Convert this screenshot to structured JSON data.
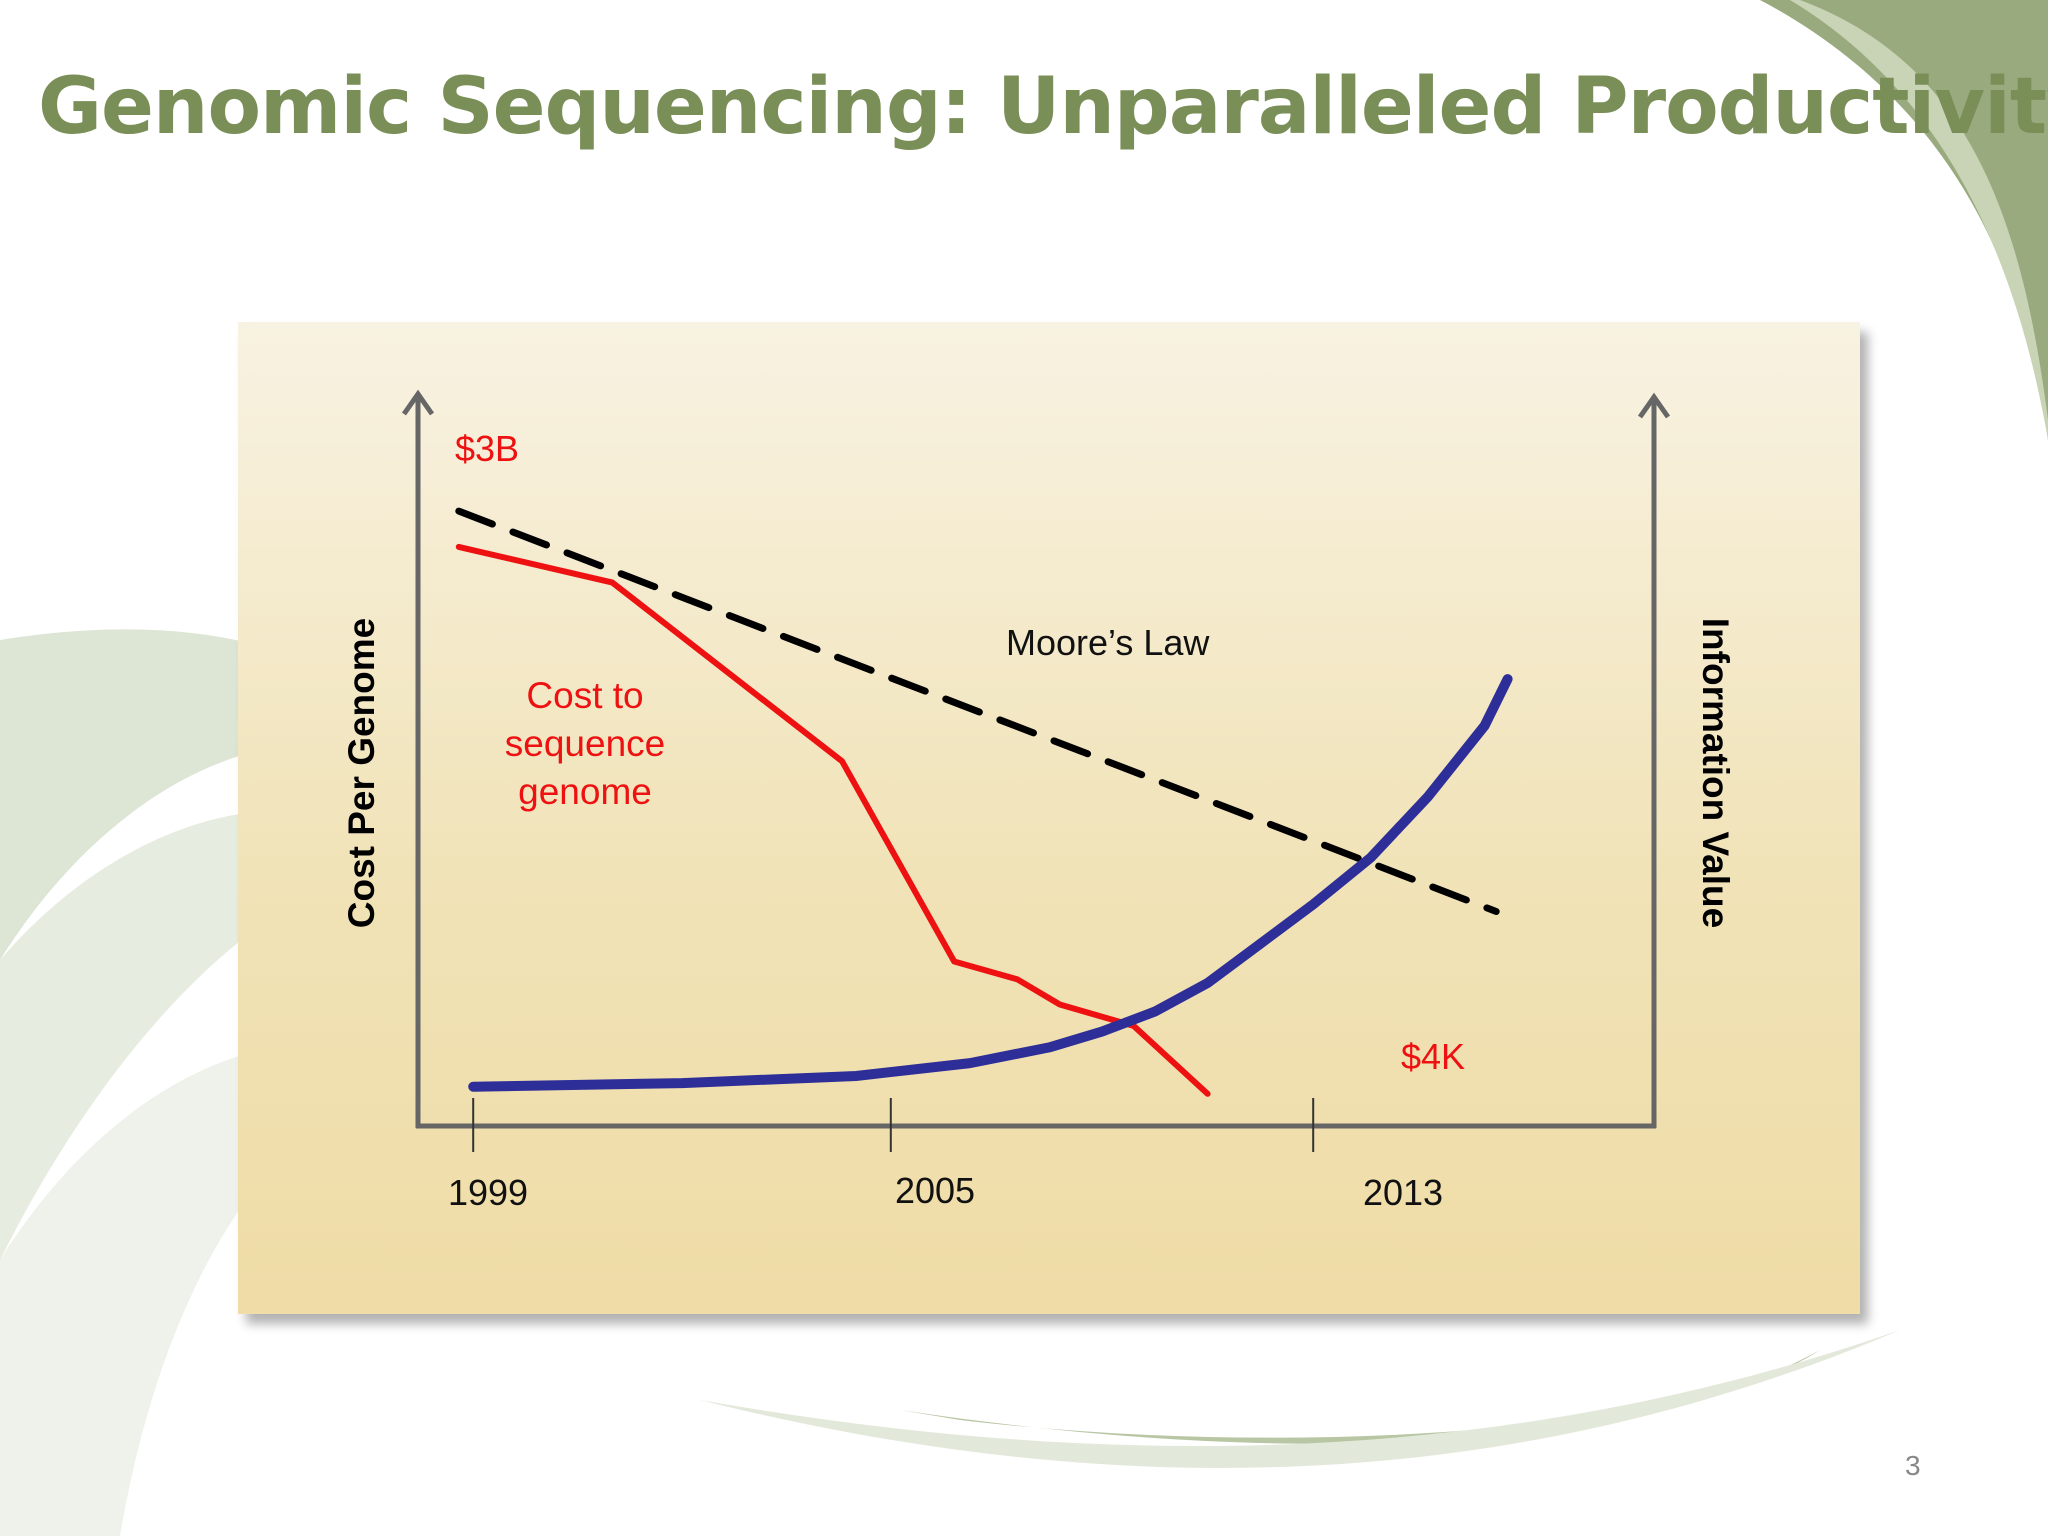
{
  "slide": {
    "title": "Genomic Sequencing:  Unparalleled Productivity",
    "page_number": "3"
  },
  "colors": {
    "title": "#7a8f58",
    "cost_line": "#ee1111",
    "info_value_line": "#2e2e99",
    "moores_law_line": "#000000",
    "axis": "#666666"
  },
  "chart_data": {
    "type": "line",
    "ylabel_left": "Cost Per Genome",
    "ylabel_right": "Information Value",
    "x_ticks": [
      "1999",
      "2005",
      "2013"
    ],
    "annotations": {
      "start_cost": "$3B",
      "end_cost": "$4K",
      "moores_law": "Moore’s Law",
      "cost_series": [
        "Cost to",
        "sequence",
        "genome"
      ]
    },
    "series": [
      {
        "name": "Cost to sequence genome",
        "style": "solid",
        "x": [
          1998.8,
          2001.0,
          2004.3,
          2006.2,
          2007.4,
          2008.2,
          2009.6,
          2011.0
        ],
        "y": [
          81,
          76,
          51,
          23,
          20.5,
          17,
          14,
          4.5
        ]
      },
      {
        "name": "Moore’s Law",
        "style": "dashed",
        "x": [
          1998.8,
          2016.2
        ],
        "y": [
          86,
          30
        ]
      },
      {
        "name": "Information Value",
        "style": "solid",
        "x": [
          1999.0,
          2002.0,
          2004.5,
          2006.5,
          2008.0,
          2009.0,
          2010.0,
          2011.0,
          2012.0,
          2013.0,
          2014.0,
          2015.0,
          2016.0,
          2016.4
        ],
        "y": [
          5.5,
          6.0,
          7.0,
          8.8,
          11.0,
          13.2,
          16.0,
          20.0,
          25.5,
          31.0,
          37.5,
          46.0,
          56.0,
          62.5
        ]
      }
    ]
  }
}
